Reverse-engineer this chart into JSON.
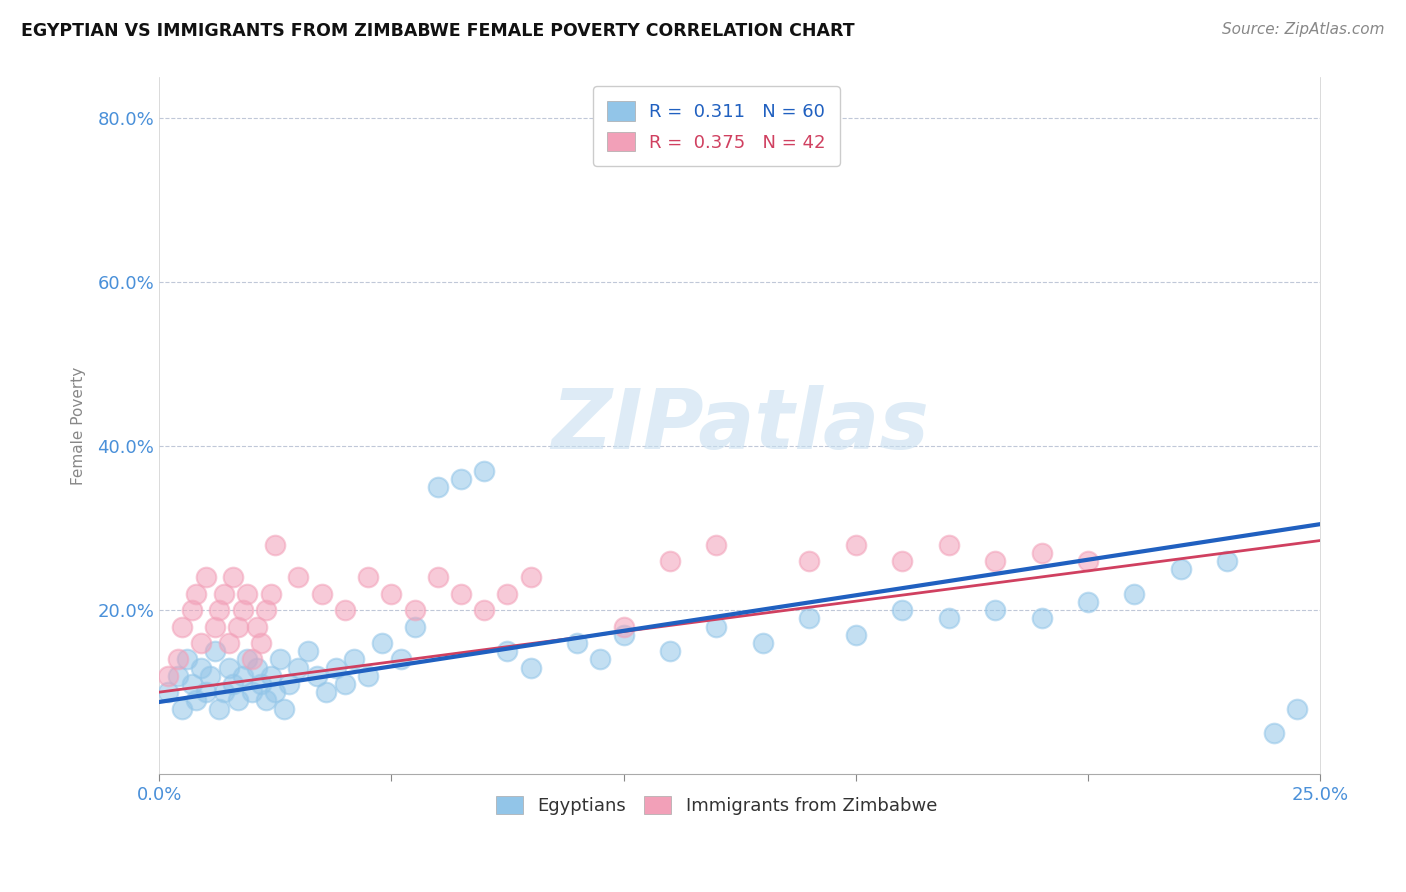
{
  "title": "EGYPTIAN VS IMMIGRANTS FROM ZIMBABWE FEMALE POVERTY CORRELATION CHART",
  "source": "Source: ZipAtlas.com",
  "ylabel": "Female Poverty",
  "xlim": [
    0.0,
    0.25
  ],
  "ylim": [
    0.0,
    0.85
  ],
  "xticks": [
    0.0,
    0.05,
    0.1,
    0.15,
    0.2,
    0.25
  ],
  "xtick_labels": [
    "0.0%",
    "",
    "",
    "",
    "",
    "25.0%"
  ],
  "ytick_vals": [
    0.2,
    0.4,
    0.6,
    0.8
  ],
  "ytick_labels": [
    "20.0%",
    "40.0%",
    "60.0%",
    "80.0%"
  ],
  "blue_color": "#92C5E8",
  "pink_color": "#F2A0B8",
  "blue_line_color": "#2060C0",
  "pink_line_color": "#D04060",
  "r_blue": 0.311,
  "n_blue": 60,
  "r_pink": 0.375,
  "n_pink": 42,
  "watermark": "ZIPatlas",
  "blue_scatter_x": [
    0.002,
    0.004,
    0.005,
    0.006,
    0.007,
    0.008,
    0.009,
    0.01,
    0.011,
    0.012,
    0.013,
    0.014,
    0.015,
    0.016,
    0.017,
    0.018,
    0.019,
    0.02,
    0.021,
    0.022,
    0.023,
    0.024,
    0.025,
    0.026,
    0.027,
    0.028,
    0.03,
    0.032,
    0.034,
    0.036,
    0.038,
    0.04,
    0.042,
    0.045,
    0.048,
    0.052,
    0.055,
    0.06,
    0.065,
    0.07,
    0.075,
    0.08,
    0.09,
    0.095,
    0.1,
    0.11,
    0.12,
    0.13,
    0.14,
    0.15,
    0.16,
    0.17,
    0.18,
    0.19,
    0.2,
    0.21,
    0.22,
    0.23,
    0.24,
    0.245
  ],
  "blue_scatter_y": [
    0.1,
    0.12,
    0.08,
    0.14,
    0.11,
    0.09,
    0.13,
    0.1,
    0.12,
    0.15,
    0.08,
    0.1,
    0.13,
    0.11,
    0.09,
    0.12,
    0.14,
    0.1,
    0.13,
    0.11,
    0.09,
    0.12,
    0.1,
    0.14,
    0.08,
    0.11,
    0.13,
    0.15,
    0.12,
    0.1,
    0.13,
    0.11,
    0.14,
    0.12,
    0.16,
    0.14,
    0.18,
    0.35,
    0.36,
    0.37,
    0.15,
    0.13,
    0.16,
    0.14,
    0.17,
    0.15,
    0.18,
    0.16,
    0.19,
    0.17,
    0.2,
    0.19,
    0.2,
    0.19,
    0.21,
    0.22,
    0.25,
    0.26,
    0.05,
    0.08
  ],
  "pink_scatter_x": [
    0.002,
    0.004,
    0.005,
    0.007,
    0.008,
    0.009,
    0.01,
    0.012,
    0.013,
    0.014,
    0.015,
    0.016,
    0.017,
    0.018,
    0.019,
    0.02,
    0.021,
    0.022,
    0.023,
    0.024,
    0.025,
    0.03,
    0.035,
    0.04,
    0.045,
    0.05,
    0.055,
    0.06,
    0.065,
    0.07,
    0.075,
    0.08,
    0.1,
    0.11,
    0.12,
    0.14,
    0.15,
    0.16,
    0.17,
    0.18,
    0.19,
    0.2
  ],
  "pink_scatter_y": [
    0.12,
    0.14,
    0.18,
    0.2,
    0.22,
    0.16,
    0.24,
    0.18,
    0.2,
    0.22,
    0.16,
    0.24,
    0.18,
    0.2,
    0.22,
    0.14,
    0.18,
    0.16,
    0.2,
    0.22,
    0.28,
    0.24,
    0.22,
    0.2,
    0.24,
    0.22,
    0.2,
    0.24,
    0.22,
    0.2,
    0.22,
    0.24,
    0.18,
    0.26,
    0.28,
    0.26,
    0.28,
    0.26,
    0.28,
    0.26,
    0.27,
    0.26
  ]
}
